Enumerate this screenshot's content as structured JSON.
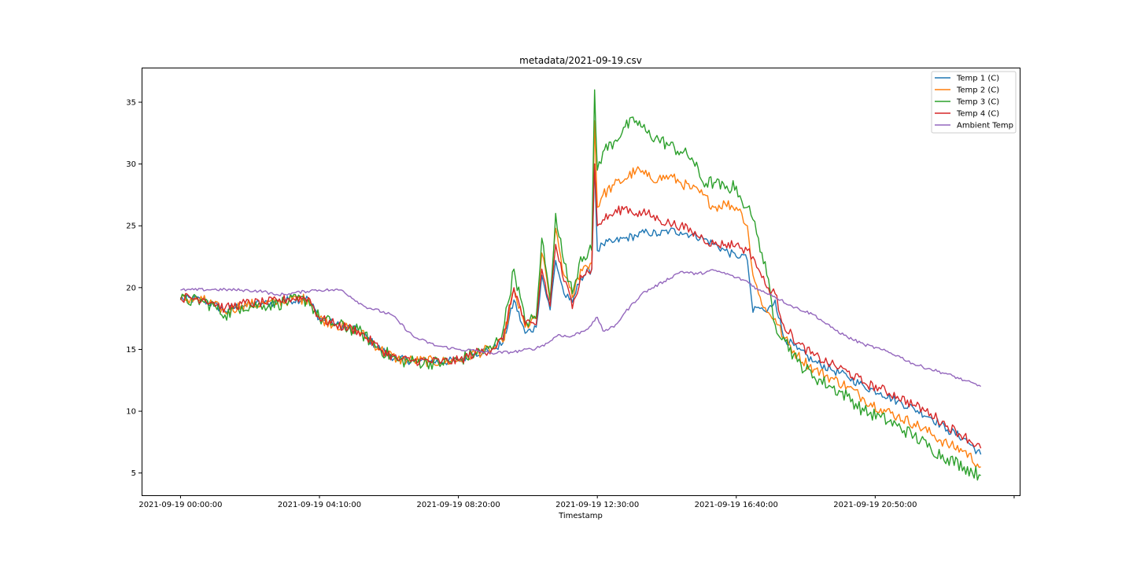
{
  "chart_data": {
    "type": "line",
    "title": "metadata/2021-09-19.csv",
    "xlabel": "Timestamp",
    "ylabel": "",
    "x_unit": "minutes",
    "xlim": [
      -70,
      1510
    ],
    "ylim": [
      3.2,
      37.8
    ],
    "grid": false,
    "legend_position": "top-right",
    "x_ticks": [
      {
        "value": 0,
        "label": "2021-09-19 00:00:00"
      },
      {
        "value": 250,
        "label": "2021-09-19 04:10:00"
      },
      {
        "value": 500,
        "label": "2021-09-19 08:20:00"
      },
      {
        "value": 750,
        "label": "2021-09-19 12:30:00"
      },
      {
        "value": 1000,
        "label": "2021-09-19 16:40:00"
      },
      {
        "value": 1250,
        "label": "2021-09-19 20:50:00"
      },
      {
        "value": 1500,
        "label": ""
      }
    ],
    "y_ticks": [
      {
        "value": 5,
        "label": "5"
      },
      {
        "value": 10,
        "label": "10"
      },
      {
        "value": 15,
        "label": "15"
      },
      {
        "value": 20,
        "label": "20"
      },
      {
        "value": 25,
        "label": "25"
      },
      {
        "value": 30,
        "label": "30"
      },
      {
        "value": 35,
        "label": "35"
      }
    ],
    "series": [
      {
        "name": "Temp 1 (C)",
        "color": "#1f77b4",
        "x": [
          0,
          40,
          60,
          80,
          110,
          150,
          175,
          195,
          230,
          250,
          280,
          320,
          360,
          390,
          420,
          470,
          500,
          530,
          560,
          580,
          600,
          620,
          640,
          650,
          665,
          675,
          690,
          700,
          705,
          720,
          740,
          745,
          750,
          760,
          780,
          800,
          820,
          840,
          860,
          880,
          900,
          920,
          940,
          960,
          980,
          1000,
          1010,
          1020,
          1030,
          1040,
          1055,
          1070,
          1085,
          1110,
          1140,
          1170,
          1200,
          1230,
          1260,
          1290,
          1320,
          1350,
          1380,
          1410,
          1440
        ],
        "y": [
          19.1,
          19.0,
          18.6,
          18.1,
          18.6,
          18.7,
          18.8,
          19.0,
          19.1,
          17.5,
          17.0,
          16.5,
          15.0,
          14.2,
          14.1,
          14.0,
          14.1,
          14.7,
          15.0,
          15.5,
          19.0,
          16.3,
          16.8,
          21.0,
          18.2,
          22.2,
          19.5,
          19.0,
          18.8,
          20.8,
          21.5,
          30.0,
          23.0,
          23.5,
          23.7,
          24.0,
          24.2,
          24.5,
          24.3,
          24.6,
          24.5,
          24.3,
          24.0,
          23.5,
          23.0,
          22.5,
          22.7,
          22.2,
          18.0,
          18.4,
          18.0,
          19.0,
          16.0,
          15.0,
          14.0,
          13.4,
          12.8,
          12.0,
          11.5,
          10.8,
          10.2,
          9.5,
          8.5,
          7.8,
          6.5
        ]
      },
      {
        "name": "Temp 2 (C)",
        "color": "#ff7f0e",
        "x": [
          0,
          40,
          60,
          80,
          110,
          150,
          175,
          195,
          230,
          250,
          280,
          320,
          360,
          390,
          420,
          470,
          500,
          530,
          560,
          580,
          600,
          620,
          640,
          650,
          665,
          675,
          690,
          700,
          705,
          720,
          740,
          745,
          750,
          760,
          780,
          800,
          820,
          840,
          860,
          880,
          900,
          920,
          940,
          960,
          980,
          1000,
          1010,
          1020,
          1030,
          1040,
          1055,
          1070,
          1085,
          1110,
          1140,
          1170,
          1200,
          1230,
          1260,
          1290,
          1320,
          1350,
          1380,
          1410,
          1440
        ],
        "y": [
          19.1,
          19.0,
          18.6,
          18.0,
          18.6,
          18.7,
          18.8,
          19.0,
          19.1,
          17.5,
          17.0,
          16.5,
          15.0,
          14.2,
          14.1,
          14.0,
          14.1,
          14.7,
          15.0,
          15.6,
          19.8,
          16.8,
          17.5,
          22.8,
          19.0,
          24.8,
          21.0,
          20.0,
          19.2,
          21.5,
          22.0,
          33.5,
          26.5,
          27.5,
          28.3,
          28.8,
          29.5,
          29.0,
          28.8,
          29.0,
          28.5,
          28.0,
          27.5,
          26.5,
          26.8,
          26.5,
          26.0,
          25.0,
          21.0,
          19.5,
          18.0,
          17.5,
          16.0,
          14.5,
          13.4,
          12.7,
          12.0,
          11.0,
          10.2,
          9.6,
          9.0,
          8.2,
          7.3,
          6.8,
          5.5
        ]
      },
      {
        "name": "Temp 3 (C)",
        "color": "#2ca02c",
        "x": [
          0,
          40,
          60,
          80,
          110,
          150,
          175,
          195,
          230,
          250,
          280,
          320,
          360,
          390,
          420,
          470,
          500,
          530,
          560,
          580,
          600,
          620,
          640,
          650,
          665,
          675,
          690,
          700,
          705,
          720,
          740,
          745,
          750,
          760,
          780,
          800,
          820,
          840,
          860,
          880,
          900,
          920,
          940,
          960,
          980,
          1000,
          1010,
          1020,
          1030,
          1040,
          1055,
          1070,
          1085,
          1110,
          1140,
          1170,
          1200,
          1230,
          1260,
          1290,
          1320,
          1350,
          1380,
          1410,
          1440
        ],
        "y": [
          19.0,
          18.9,
          18.5,
          17.8,
          18.5,
          18.6,
          18.7,
          18.9,
          19.0,
          17.5,
          17.0,
          16.5,
          15.0,
          14.1,
          14.0,
          13.9,
          14.1,
          14.7,
          15.0,
          16.5,
          21.5,
          17.2,
          17.5,
          24.0,
          19.0,
          26.0,
          22.0,
          20.5,
          19.5,
          22.5,
          23.0,
          36.0,
          29.5,
          31.0,
          31.8,
          33.0,
          33.5,
          32.5,
          32.0,
          31.5,
          31.0,
          30.5,
          28.5,
          28.5,
          28.0,
          28.2,
          27.0,
          26.5,
          25.5,
          24.0,
          21.0,
          17.0,
          16.0,
          14.0,
          12.8,
          12.0,
          11.2,
          10.0,
          9.5,
          8.8,
          8.0,
          7.0,
          6.2,
          5.5,
          4.8
        ]
      },
      {
        "name": "Temp 4 (C)",
        "color": "#d62728",
        "x": [
          0,
          40,
          60,
          80,
          110,
          150,
          175,
          195,
          230,
          250,
          280,
          320,
          360,
          390,
          420,
          470,
          500,
          530,
          560,
          580,
          600,
          620,
          640,
          650,
          665,
          675,
          690,
          700,
          705,
          720,
          740,
          745,
          750,
          760,
          780,
          800,
          820,
          840,
          860,
          880,
          900,
          920,
          940,
          960,
          980,
          1000,
          1010,
          1020,
          1030,
          1040,
          1055,
          1070,
          1085,
          1110,
          1140,
          1170,
          1200,
          1230,
          1260,
          1290,
          1320,
          1350,
          1380,
          1410,
          1440
        ],
        "y": [
          19.2,
          19.1,
          18.8,
          18.3,
          18.7,
          18.8,
          18.9,
          19.1,
          19.2,
          17.5,
          17.0,
          16.5,
          15.0,
          14.2,
          14.1,
          14.0,
          14.1,
          14.7,
          15.0,
          15.8,
          20.0,
          17.0,
          17.0,
          21.5,
          18.5,
          23.5,
          20.5,
          19.5,
          18.3,
          21.0,
          21.5,
          30.0,
          25.0,
          25.5,
          26.0,
          26.5,
          26.0,
          26.0,
          25.5,
          25.2,
          25.0,
          24.5,
          24.0,
          23.5,
          23.5,
          23.5,
          23.2,
          23.0,
          22.5,
          21.5,
          20.0,
          19.5,
          17.0,
          15.5,
          14.5,
          13.8,
          13.2,
          12.3,
          11.8,
          11.2,
          10.5,
          9.8,
          8.8,
          8.0,
          7.0
        ]
      },
      {
        "name": "Ambient Temp",
        "color": "#9467bd",
        "x": [
          0,
          60,
          110,
          150,
          170,
          195,
          240,
          270,
          290,
          330,
          380,
          420,
          460,
          500,
          530,
          560,
          600,
          640,
          660,
          680,
          700,
          730,
          745,
          750,
          760,
          780,
          800,
          830,
          870,
          900,
          930,
          960,
          990,
          1000,
          1020,
          1040,
          1060,
          1080,
          1100,
          1140,
          1170,
          1200,
          1230,
          1260,
          1290,
          1320,
          1350,
          1380,
          1410,
          1440
        ],
        "y": [
          19.8,
          19.85,
          19.8,
          19.7,
          19.4,
          19.5,
          19.8,
          19.8,
          19.8,
          18.5,
          17.8,
          16.0,
          15.3,
          15.0,
          14.9,
          14.7,
          14.8,
          15.1,
          15.5,
          16.2,
          16.0,
          16.6,
          17.3,
          17.6,
          16.5,
          16.8,
          18.0,
          19.5,
          20.5,
          21.3,
          21.1,
          21.4,
          21.0,
          20.8,
          20.5,
          19.8,
          19.5,
          19.0,
          18.5,
          17.8,
          16.8,
          16.0,
          15.4,
          15.0,
          14.5,
          13.8,
          13.4,
          13.0,
          12.5,
          12.0
        ]
      }
    ]
  }
}
